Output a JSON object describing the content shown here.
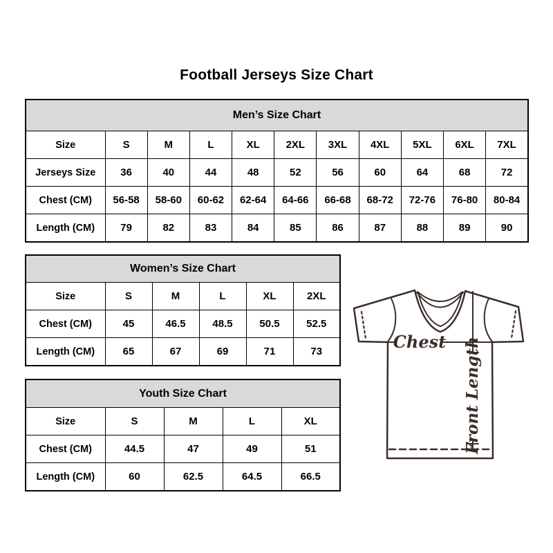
{
  "page": {
    "title": "Football Jerseys Size Chart"
  },
  "chart_data": [
    {
      "type": "table",
      "title": "Men’s Size Chart",
      "rows": [
        [
          "Size",
          "S",
          "M",
          "L",
          "XL",
          "2XL",
          "3XL",
          "4XL",
          "5XL",
          "6XL",
          "7XL"
        ],
        [
          "Jerseys Size",
          "36",
          "40",
          "44",
          "48",
          "52",
          "56",
          "60",
          "64",
          "68",
          "72"
        ],
        [
          "Chest (CM)",
          "56-58",
          "58-60",
          "60-62",
          "62-64",
          "64-66",
          "66-68",
          "68-72",
          "72-76",
          "76-80",
          "80-84"
        ],
        [
          "Length (CM)",
          "79",
          "82",
          "83",
          "84",
          "85",
          "86",
          "87",
          "88",
          "89",
          "90"
        ]
      ]
    },
    {
      "type": "table",
      "title": "Women’s Size Chart",
      "rows": [
        [
          "Size",
          "S",
          "M",
          "L",
          "XL",
          "2XL"
        ],
        [
          "Chest (CM)",
          "45",
          "46.5",
          "48.5",
          "50.5",
          "52.5"
        ],
        [
          "Length (CM)",
          "65",
          "67",
          "69",
          "71",
          "73"
        ]
      ]
    },
    {
      "type": "table",
      "title": "Youth Size Chart",
      "rows": [
        [
          "Size",
          "S",
          "M",
          "L",
          "XL"
        ],
        [
          "Chest (CM)",
          "44.5",
          "47",
          "49",
          "51"
        ],
        [
          "Length (CM)",
          "60",
          "62.5",
          "64.5",
          "66.5"
        ]
      ]
    }
  ],
  "diagram": {
    "chest_label": "Chest",
    "front_length_label": "Front Length"
  },
  "colors": {
    "background": "#ffffff",
    "table_header_bg": "#d9d9d9",
    "table_border": "#000000",
    "text": "#000000",
    "diagram_line": "#3a2d28"
  }
}
